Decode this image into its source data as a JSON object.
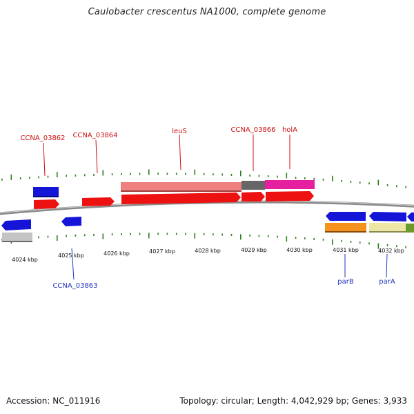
{
  "title": "Caulobacter crescentus NA1000, complete genome",
  "footer": {
    "accession": "Accession: NC_011916",
    "summary": "Topology: circular; Length: 4,042,929 bp; Genes: 3,933"
  },
  "colors": {
    "backbone": "#888888",
    "tick": "#2e7d1e",
    "forward_label": "#cc1111",
    "reverse_label": "#2233bb"
  },
  "axis": {
    "labels": [
      "4024 kbp",
      "4025 kbp",
      "4026 kbp",
      "4027 kbp",
      "4028 kbp",
      "4029 kbp",
      "4030 kbp",
      "4031 kbp",
      "4032 kbp"
    ]
  },
  "gene_labels": [
    {
      "text": "CCNA_03862",
      "strand": "forward"
    },
    {
      "text": "CCNA_03864",
      "strand": "forward"
    },
    {
      "text": "leuS",
      "strand": "forward"
    },
    {
      "text": "CCNA_03866",
      "strand": "forward"
    },
    {
      "text": "holA",
      "strand": "forward"
    },
    {
      "text": "CCNA_03863",
      "strand": "reverse"
    },
    {
      "text": "parB",
      "strand": "reverse"
    },
    {
      "text": "parA",
      "strand": "reverse"
    }
  ]
}
